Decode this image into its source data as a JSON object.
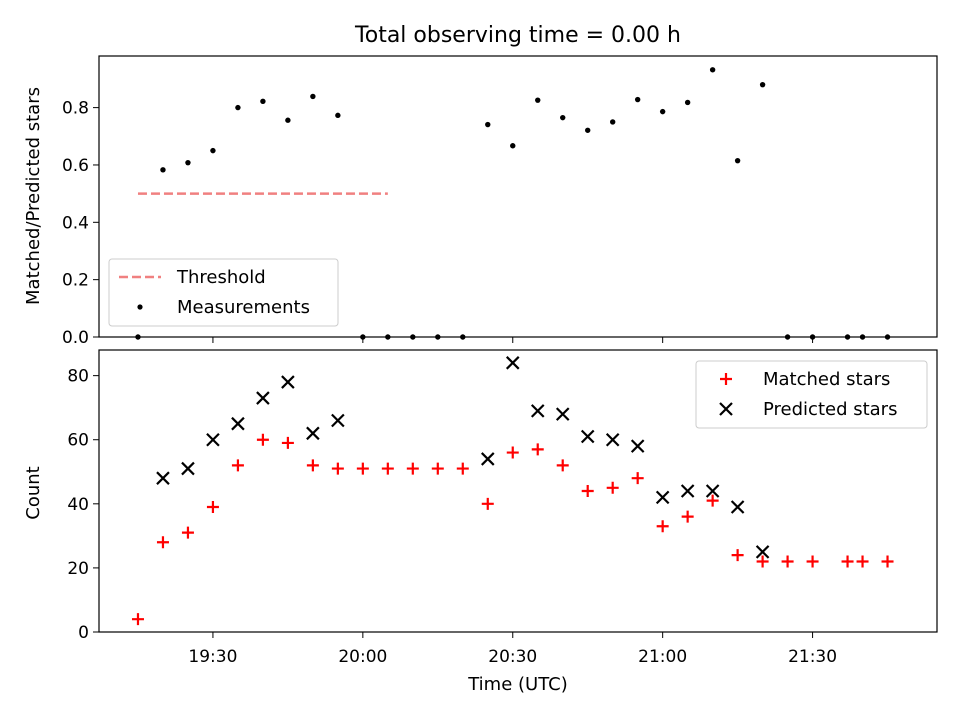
{
  "figure": {
    "title": "Total observing time = 0.00 h"
  },
  "chart_data": [
    {
      "type": "scatter",
      "ylabel": "Matched/Predicted stars",
      "ylim": [
        0,
        0.98
      ],
      "yticks": [
        "0.0",
        "0.2",
        "0.4",
        "0.6",
        "0.8"
      ],
      "xlim": [
        -2.6,
        53.3
      ],
      "threshold": {
        "name": "Threshold",
        "y": 0.5,
        "x": [
          0,
          50
        ],
        "color": "#f08080"
      },
      "legend": {
        "position": "lower-left",
        "entries": [
          "Threshold",
          "Measurements"
        ]
      },
      "series": [
        {
          "name": "Measurements",
          "color": "#000000",
          "x": [
            "19:15",
            "19:20",
            "19:25",
            "19:30",
            "19:35",
            "19:40",
            "19:45",
            "19:50",
            "19:55",
            "20:00",
            "20:05",
            "20:10",
            "20:15",
            "20:20",
            "20:25",
            "20:30",
            "20:35",
            "20:40",
            "20:45",
            "20:50",
            "20:55",
            "21:00",
            "21:05",
            "21:10",
            "21:15",
            "21:20",
            "21:25",
            "21:30",
            "21:37",
            "21:40",
            "21:45"
          ],
          "y": [
            0,
            0.583,
            0.608,
            0.65,
            0.8,
            0.822,
            0.756,
            0.839,
            0.773,
            0,
            0,
            0,
            0,
            0,
            0.741,
            0.667,
            0.826,
            0.765,
            0.721,
            0.75,
            0.828,
            0.786,
            0.818,
            0.932,
            0.615,
            0.88,
            0,
            0,
            0,
            0,
            0
          ]
        }
      ]
    },
    {
      "type": "scatter",
      "xlabel": "Time (UTC)",
      "ylabel": "Count",
      "ylim": [
        0,
        88
      ],
      "yticks": [
        "0",
        "20",
        "40",
        "60",
        "80"
      ],
      "xticks": [
        "19:30",
        "20:00",
        "20:30",
        "21:00",
        "21:30"
      ],
      "xlim": [
        -2.6,
        53.3
      ],
      "legend": {
        "position": "top-right",
        "entries": [
          "Matched stars",
          "Predicted stars"
        ]
      },
      "series": [
        {
          "name": "Matched stars",
          "marker": "plus",
          "color": "#ff0000",
          "x": [
            "19:15",
            "19:20",
            "19:25",
            "19:30",
            "19:35",
            "19:40",
            "19:45",
            "19:50",
            "19:55",
            "20:00",
            "20:05",
            "20:10",
            "20:15",
            "20:20",
            "20:25",
            "20:30",
            "20:35",
            "20:40",
            "20:45",
            "20:50",
            "20:55",
            "21:00",
            "21:05",
            "21:10",
            "21:15",
            "21:20",
            "21:25",
            "21:30",
            "21:37",
            "21:40",
            "21:45"
          ],
          "y": [
            4,
            28,
            31,
            39,
            52,
            60,
            59,
            52,
            51,
            51,
            51,
            51,
            51,
            51,
            40,
            56,
            57,
            52,
            44,
            45,
            48,
            33,
            36,
            41,
            24,
            22,
            22,
            22,
            22,
            22,
            22
          ]
        },
        {
          "name": "Predicted stars",
          "marker": "x",
          "color": "#000000",
          "x": [
            "19:20",
            "19:25",
            "19:30",
            "19:35",
            "19:40",
            "19:45",
            "19:50",
            "19:55",
            "20:25",
            "20:30",
            "20:35",
            "20:40",
            "20:45",
            "20:50",
            "20:55",
            "21:00",
            "21:05",
            "21:10",
            "21:15",
            "21:20"
          ],
          "y": [
            48,
            51,
            60,
            65,
            73,
            78,
            62,
            66,
            54,
            84,
            69,
            68,
            61,
            60,
            58,
            42,
            44,
            44,
            39,
            25
          ]
        }
      ]
    }
  ]
}
